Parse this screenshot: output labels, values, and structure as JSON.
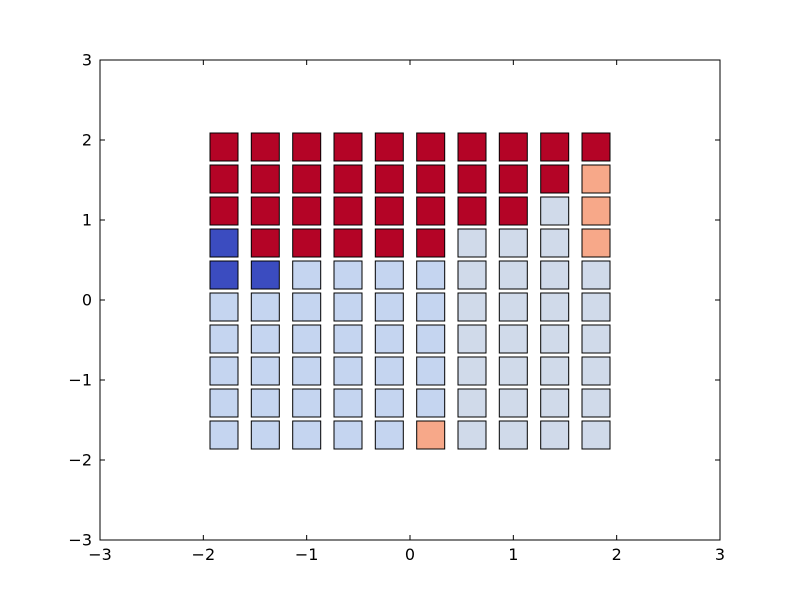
{
  "chart_data": {
    "type": "heatmap",
    "title": "",
    "xlabel": "",
    "ylabel": "",
    "xlim": [
      -3,
      3
    ],
    "ylim": [
      -3,
      3
    ],
    "x_ticks": [
      "−3",
      "−2",
      "−1",
      "0",
      "1",
      "2",
      "3"
    ],
    "y_ticks": [
      "−3",
      "−2",
      "−1",
      "0",
      "1",
      "2",
      "3"
    ],
    "grid": false,
    "legend": "none",
    "colormap": "coolwarm",
    "x": [
      -1.8,
      -1.4,
      -1.0,
      -0.6,
      -0.2,
      0.2,
      0.6,
      1.0,
      1.4,
      1.8
    ],
    "y": [
      2.0,
      1.6,
      1.2,
      0.8,
      0.4,
      0.0,
      -0.4,
      -0.8,
      -1.2,
      -1.6
    ],
    "palette": {
      "R": "#b40426",
      "S": "#f7a889",
      "L": "#c5d5f0",
      "P": "#d0daea",
      "B": "#3b4cc0"
    },
    "grid_colors": [
      "RRRRRRRRRR",
      "RRRRRRRRRS",
      "RRRRRRRRPS",
      "BRRRRRPPPS",
      "BBLLLLPPPP",
      "LLLLLLPPPP",
      "LLLLLLPPPP",
      "LLLLLLPPPP",
      "LLLLLLPPPP",
      "LLLLLSPPPP"
    ]
  }
}
